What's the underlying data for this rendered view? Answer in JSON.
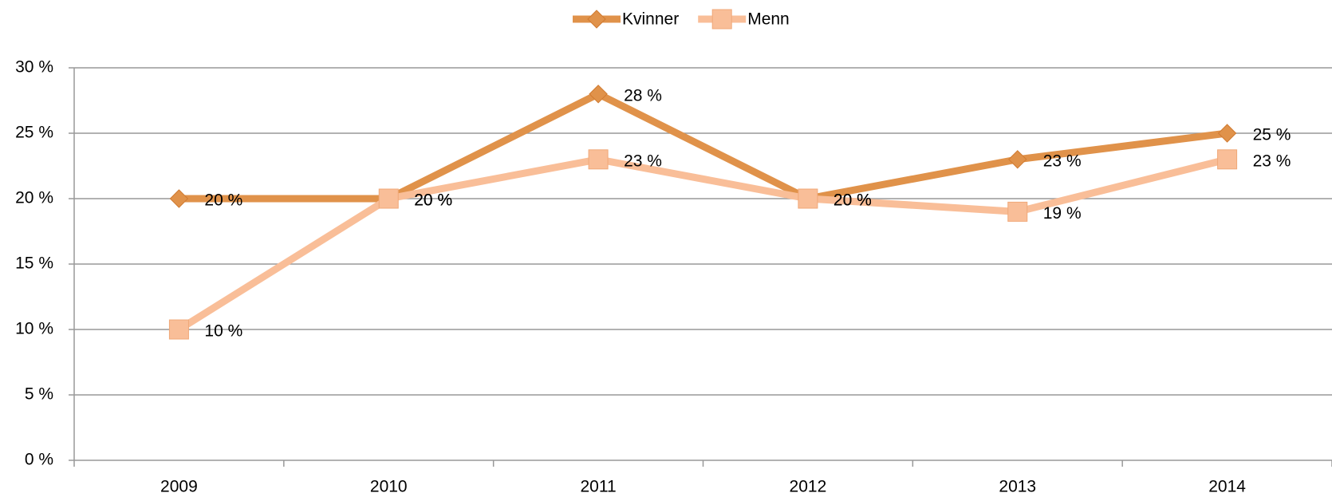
{
  "chart_data": {
    "type": "line",
    "categories": [
      "2009",
      "2010",
      "2011",
      "2012",
      "2013",
      "2014"
    ],
    "series": [
      {
        "name": "Kvinner",
        "color": "#e0924a",
        "marker": "diamond",
        "values": [
          20,
          20,
          28,
          20,
          23,
          25
        ],
        "value_labels": [
          "20 %",
          "20 %",
          "28 %",
          "20 %",
          "23 %",
          "25 %"
        ]
      },
      {
        "name": "Menn",
        "color": "#f9be98",
        "marker": "square",
        "values": [
          10,
          20,
          23,
          20,
          19,
          23
        ],
        "value_labels": [
          "10 %",
          "20 %",
          "23 %",
          "20 %",
          "19 %",
          "23 %"
        ]
      }
    ],
    "ylim": [
      0,
      30
    ],
    "yticks": [
      {
        "value": 0,
        "label": "0 %"
      },
      {
        "value": 5,
        "label": "5 %"
      },
      {
        "value": 10,
        "label": "10 %"
      },
      {
        "value": 15,
        "label": "15 %"
      },
      {
        "value": 20,
        "label": "20 %"
      },
      {
        "value": 25,
        "label": "25 %"
      },
      {
        "value": 30,
        "label": "30 %"
      }
    ],
    "grid": true,
    "legend": "top"
  }
}
